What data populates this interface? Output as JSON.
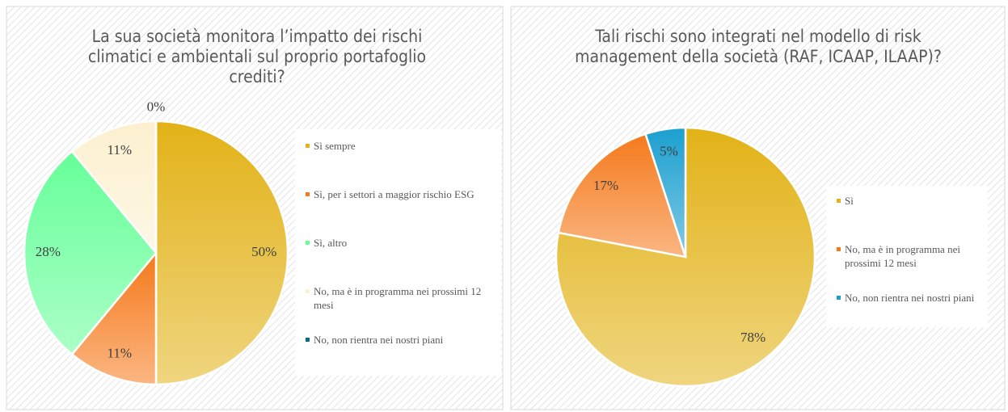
{
  "chart_data": [
    {
      "type": "pie",
      "title": "La sua società monitora l’impatto dei rischi climatici e ambientali sul proprio portafoglio crediti?",
      "categories": [
        "Sì sempre",
        "Sì, per i settori a maggior rischio ESG",
        "Sì, altro",
        "No, ma è in programma nei prossimi 12 mesi",
        "No, non rientra nei nostri piani"
      ],
      "values": [
        50,
        11,
        28,
        11,
        0
      ],
      "value_labels": [
        "50%",
        "11%",
        "28%",
        "11%",
        "0%"
      ],
      "colors": [
        "#e2b217",
        "#f57a1c",
        "#66ff99",
        "#fcf0cf",
        "#0b6c8a"
      ]
    },
    {
      "type": "pie",
      "title": "Tali rischi sono integrati nel modello di risk management della società (RAF, ICAAP, ILAAP)?",
      "categories": [
        "Sì",
        "No, ma è in programma nei prossimi 12 mesi",
        "No, non rientra nei nostri piani"
      ],
      "values": [
        78,
        17,
        5
      ],
      "value_labels": [
        "78%",
        "17%",
        "5%"
      ],
      "colors": [
        "#e2b217",
        "#f57a1c",
        "#1b9fd0"
      ]
    }
  ]
}
